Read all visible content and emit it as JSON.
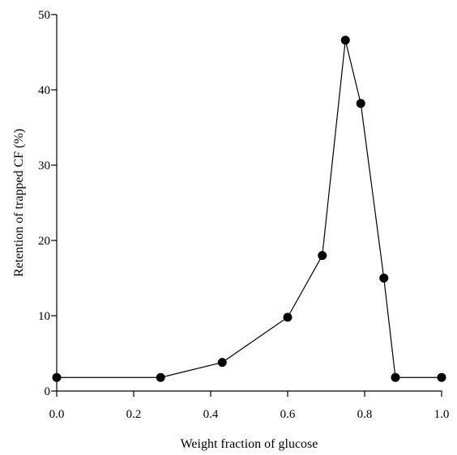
{
  "chart_data": {
    "type": "line",
    "title": "",
    "xlabel": "Weight fraction of glucose",
    "ylabel": "Retention of trapped CF (%)",
    "xlim": [
      0.0,
      1.0
    ],
    "ylim": [
      0,
      50
    ],
    "xticks": [
      0.0,
      0.2,
      0.4,
      0.6,
      0.8,
      1.0
    ],
    "xtick_labels": [
      "0.0",
      "0.2",
      "0.4",
      "0.6",
      "0.8",
      "1.0"
    ],
    "yticks": [
      0,
      10,
      20,
      30,
      40,
      50
    ],
    "ytick_labels": [
      "0",
      "10",
      "20",
      "30",
      "40",
      "50"
    ],
    "grid": false,
    "legend": "none",
    "series": [
      {
        "x": [
          0.0,
          0.27,
          0.43,
          0.6,
          0.69,
          0.75,
          0.79,
          0.85,
          0.88,
          1.0
        ],
        "y": [
          1.8,
          1.8,
          3.8,
          9.8,
          18.0,
          46.6,
          38.2,
          15.0,
          1.8,
          1.8
        ],
        "color": "#000000",
        "marker": "filled-circle"
      }
    ]
  }
}
